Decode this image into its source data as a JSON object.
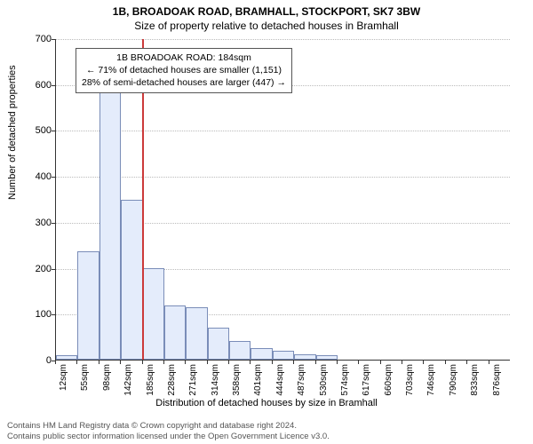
{
  "titles": {
    "main": "1B, BROADOAK ROAD, BRAMHALL, STOCKPORT, SK7 3BW",
    "sub": "Size of property relative to detached houses in Bramhall"
  },
  "axes": {
    "y_title": "Number of detached properties",
    "x_title": "Distribution of detached houses by size in Bramhall",
    "ylim": [
      0,
      700
    ],
    "ytick_step": 100,
    "label_fontsize": 11
  },
  "histogram": {
    "type": "bar",
    "bar_fill": "#e4ecfb",
    "bar_stroke": "#7a8db8",
    "num_bins": 21,
    "bin_width_sqm": 43.2,
    "bin_start_sqm": 12,
    "values": [
      10,
      235,
      605,
      348,
      200,
      118,
      115,
      70,
      40,
      26,
      20,
      12,
      10,
      0,
      0,
      0,
      0,
      0,
      0,
      0,
      0
    ],
    "x_labels": [
      "12sqm",
      "55sqm",
      "98sqm",
      "142sqm",
      "185sqm",
      "228sqm",
      "271sqm",
      "314sqm",
      "358sqm",
      "401sqm",
      "444sqm",
      "487sqm",
      "530sqm",
      "574sqm",
      "617sqm",
      "660sqm",
      "703sqm",
      "746sqm",
      "790sqm",
      "833sqm",
      "876sqm"
    ]
  },
  "marker": {
    "line_color": "#cc3a3a",
    "position_sqm": 184,
    "box": {
      "line1": "1B BROADOAK ROAD: 184sqm",
      "line2": "← 71% of detached houses are smaller (1,151)",
      "line3": "28% of semi-detached houses are larger (447) →"
    }
  },
  "footer": {
    "line1": "Contains HM Land Registry data © Crown copyright and database right 2024.",
    "line2": "Contains public sector information licensed under the Open Government Licence v3.0."
  },
  "style": {
    "background_color": "#ffffff",
    "grid_color": "#bbbbbb",
    "axis_color": "#333333",
    "tick_fontsize": 11
  }
}
